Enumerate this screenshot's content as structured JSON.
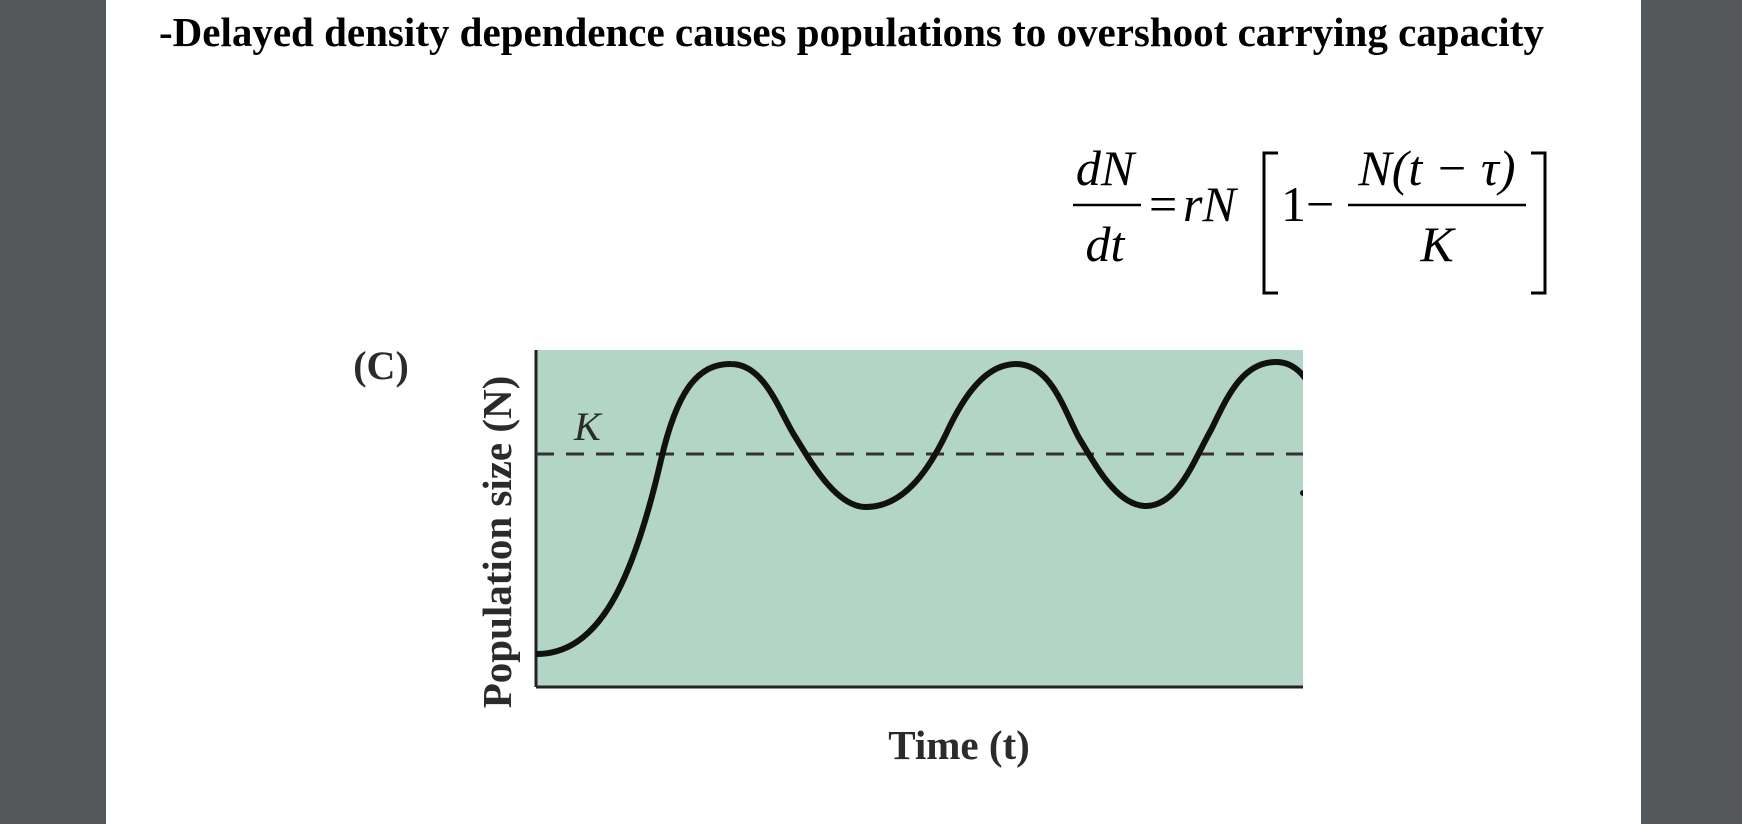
{
  "slide": {
    "title": "-Delayed density dependence causes populations to overshoot carrying capacity"
  },
  "equation": {
    "lhs_numerator": "dN",
    "lhs_denominator": "dt",
    "equals": "=",
    "rN": "rN",
    "one_minus": "1−",
    "rhs_numerator": "N(t − τ)",
    "rhs_denominator": "K"
  },
  "figure": {
    "panel_label": "(C)",
    "y_axis_label": "Population size (N)",
    "x_axis_label": "Time (t)",
    "k_label": "K"
  },
  "colors": {
    "plot_background": "#b2d5c6",
    "curve": "#111111",
    "carrying_capacity_line": "#333333"
  }
}
